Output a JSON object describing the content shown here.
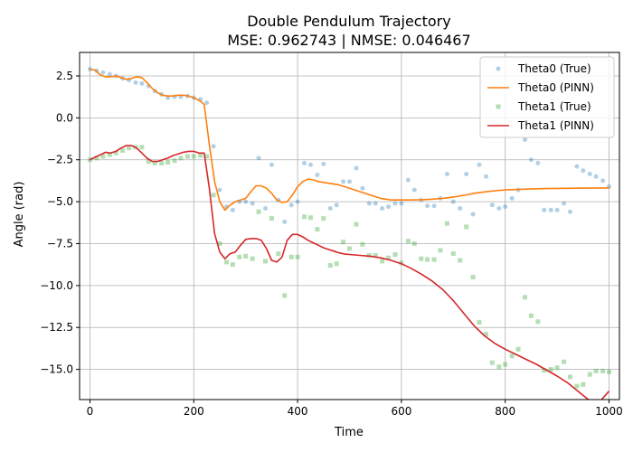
{
  "chart_data": {
    "type": "line",
    "title_line1": "Double Pendulum Trajectory",
    "title_line2": "MSE: 0.962743 | NMSE: 0.046467",
    "xlabel": "Time",
    "ylabel": "Angle (rad)",
    "xlim": [
      -20,
      1020
    ],
    "ylim": [
      -16.8,
      3.9
    ],
    "xticks": [
      0,
      200,
      400,
      600,
      800,
      1000
    ],
    "yticks": [
      2.5,
      0.0,
      -2.5,
      -5.0,
      -7.5,
      -10.0,
      -12.5,
      -15.0
    ],
    "ytick_labels": [
      "2.5",
      "0.0",
      "−2.5",
      "−5.0",
      "−7.5",
      "−10.0",
      "−12.5",
      "−15.0"
    ],
    "grid": true,
    "legend_position": "top-right",
    "series": [
      {
        "name": "Theta0 (True)",
        "kind": "scatter",
        "marker": "circle",
        "color": "#1f77b4",
        "x": [
          0,
          13,
          25,
          38,
          50,
          63,
          75,
          88,
          100,
          113,
          125,
          138,
          150,
          163,
          175,
          188,
          200,
          213,
          225,
          238,
          250,
          263,
          275,
          288,
          300,
          313,
          325,
          338,
          350,
          363,
          375,
          388,
          400,
          413,
          425,
          438,
          450,
          463,
          475,
          488,
          500,
          513,
          525,
          538,
          550,
          563,
          575,
          588,
          600,
          613,
          625,
          638,
          650,
          663,
          675,
          688,
          700,
          713,
          725,
          738,
          750,
          763,
          775,
          788,
          800,
          813,
          825,
          838,
          850,
          863,
          875,
          888,
          900,
          913,
          925,
          938,
          950,
          963,
          975,
          988,
          1000
        ],
        "y": [
          2.9,
          2.8,
          2.7,
          2.6,
          2.5,
          2.35,
          2.25,
          2.1,
          2.05,
          1.9,
          1.6,
          1.4,
          1.2,
          1.25,
          1.25,
          1.3,
          1.2,
          1.1,
          0.9,
          -1.7,
          -4.3,
          -5.3,
          -5.5,
          -5.0,
          -5.0,
          -5.1,
          -2.4,
          -5.4,
          -2.8,
          -4.9,
          -6.2,
          -5.2,
          -5.0,
          -2.7,
          -2.8,
          -3.4,
          -2.75,
          -5.4,
          -5.2,
          -3.8,
          -3.8,
          -3.0,
          -4.2,
          -5.1,
          -5.1,
          -5.4,
          -5.3,
          -5.1,
          -5.1,
          -3.7,
          -4.3,
          -4.9,
          -5.25,
          -5.25,
          -4.8,
          -3.35,
          -5.0,
          -5.4,
          -3.35,
          -5.75,
          -2.8,
          -3.5,
          -5.2,
          -5.4,
          -5.3,
          -4.8,
          -4.3,
          -1.3,
          -2.5,
          -2.7,
          -5.5,
          -5.5,
          -5.5,
          -5.1,
          -5.6,
          -2.9,
          -3.15,
          -3.35,
          -3.5,
          -3.75,
          -4.1
        ]
      },
      {
        "name": "Theta0 (PINN)",
        "kind": "line",
        "color": "#ff7f0e",
        "x": [
          0,
          10,
          20,
          30,
          40,
          50,
          60,
          70,
          80,
          90,
          100,
          110,
          120,
          130,
          140,
          150,
          160,
          170,
          180,
          190,
          200,
          210,
          220,
          230,
          240,
          250,
          260,
          270,
          280,
          290,
          300,
          310,
          320,
          330,
          340,
          350,
          360,
          370,
          380,
          390,
          400,
          410,
          420,
          430,
          440,
          450,
          460,
          470,
          480,
          490,
          500,
          520,
          540,
          560,
          580,
          600,
          620,
          640,
          660,
          680,
          700,
          720,
          740,
          760,
          780,
          800,
          840,
          880,
          920,
          960,
          1000
        ],
        "y": [
          2.9,
          2.85,
          2.55,
          2.45,
          2.45,
          2.5,
          2.4,
          2.3,
          2.35,
          2.45,
          2.4,
          2.1,
          1.75,
          1.5,
          1.35,
          1.3,
          1.3,
          1.35,
          1.35,
          1.3,
          1.2,
          1.05,
          0.8,
          -1.6,
          -3.8,
          -5.0,
          -5.5,
          -5.2,
          -5.0,
          -4.9,
          -4.8,
          -4.4,
          -4.05,
          -4.05,
          -4.2,
          -4.5,
          -4.9,
          -5.05,
          -5.0,
          -4.6,
          -4.1,
          -3.8,
          -3.65,
          -3.7,
          -3.8,
          -3.85,
          -3.9,
          -3.95,
          -4.0,
          -4.1,
          -4.2,
          -4.4,
          -4.6,
          -4.8,
          -4.9,
          -4.9,
          -4.9,
          -4.88,
          -4.85,
          -4.8,
          -4.72,
          -4.62,
          -4.5,
          -4.42,
          -4.35,
          -4.3,
          -4.25,
          -4.22,
          -4.2,
          -4.19,
          -4.18
        ]
      },
      {
        "name": "Theta1 (True)",
        "kind": "scatter",
        "marker": "square",
        "color": "#2ca02c",
        "x": [
          0,
          13,
          25,
          38,
          50,
          63,
          75,
          88,
          100,
          113,
          125,
          138,
          150,
          163,
          175,
          188,
          200,
          213,
          225,
          238,
          250,
          263,
          275,
          288,
          300,
          313,
          325,
          338,
          350,
          363,
          375,
          388,
          400,
          413,
          425,
          438,
          450,
          463,
          475,
          488,
          500,
          513,
          525,
          538,
          550,
          563,
          575,
          588,
          600,
          613,
          625,
          638,
          650,
          663,
          675,
          688,
          700,
          713,
          725,
          738,
          750,
          763,
          775,
          788,
          800,
          813,
          825,
          838,
          850,
          863,
          875,
          888,
          900,
          913,
          925,
          938,
          950,
          963,
          975,
          988,
          1000
        ],
        "y": [
          -2.5,
          -2.4,
          -2.3,
          -2.2,
          -2.1,
          -1.95,
          -1.8,
          -1.75,
          -1.75,
          -2.6,
          -2.7,
          -2.7,
          -2.65,
          -2.55,
          -2.4,
          -2.3,
          -2.3,
          -2.25,
          -2.3,
          -4.6,
          -7.5,
          -8.6,
          -8.75,
          -8.3,
          -8.25,
          -8.4,
          -5.6,
          -8.55,
          -6.0,
          -8.1,
          -10.6,
          -8.3,
          -8.3,
          -5.9,
          -5.95,
          -6.65,
          -6.0,
          -8.8,
          -8.7,
          -7.4,
          -7.8,
          -6.35,
          -7.55,
          -8.2,
          -8.2,
          -8.55,
          -8.35,
          -8.15,
          -8.65,
          -7.35,
          -7.5,
          -8.4,
          -8.45,
          -8.45,
          -7.9,
          -6.3,
          -8.1,
          -8.5,
          -6.5,
          -9.5,
          -12.2,
          -12.9,
          -14.6,
          -14.85,
          -14.7,
          -14.2,
          -13.8,
          -10.7,
          -11.8,
          -12.15,
          -15.05,
          -15.0,
          -14.9,
          -14.55,
          -15.45,
          -16.0,
          -15.9,
          -15.3,
          -15.1,
          -15.1,
          -15.15
        ]
      },
      {
        "name": "Theta1 (PINN)",
        "kind": "line",
        "color": "#d62728",
        "x": [
          0,
          10,
          20,
          30,
          40,
          50,
          60,
          70,
          80,
          90,
          100,
          110,
          120,
          130,
          140,
          150,
          160,
          170,
          180,
          190,
          200,
          210,
          220,
          230,
          240,
          250,
          260,
          270,
          280,
          290,
          300,
          310,
          320,
          330,
          340,
          350,
          360,
          370,
          380,
          390,
          400,
          410,
          420,
          430,
          440,
          450,
          460,
          470,
          480,
          490,
          500,
          520,
          540,
          560,
          580,
          600,
          620,
          640,
          660,
          680,
          700,
          720,
          740,
          760,
          780,
          800,
          820,
          840,
          860,
          880,
          900,
          920,
          940,
          960,
          980,
          1000
        ],
        "y": [
          -2.5,
          -2.35,
          -2.2,
          -2.05,
          -2.1,
          -2.0,
          -1.8,
          -1.65,
          -1.65,
          -1.8,
          -2.1,
          -2.4,
          -2.6,
          -2.6,
          -2.5,
          -2.4,
          -2.25,
          -2.15,
          -2.05,
          -2.0,
          -2.0,
          -2.1,
          -2.1,
          -4.2,
          -6.9,
          -8.0,
          -8.4,
          -8.1,
          -8.0,
          -7.6,
          -7.25,
          -7.2,
          -7.2,
          -7.3,
          -7.8,
          -8.5,
          -8.6,
          -8.3,
          -7.3,
          -6.95,
          -6.95,
          -7.1,
          -7.3,
          -7.45,
          -7.6,
          -7.75,
          -7.85,
          -7.95,
          -8.05,
          -8.12,
          -8.15,
          -8.2,
          -8.25,
          -8.35,
          -8.5,
          -8.7,
          -9.0,
          -9.35,
          -9.75,
          -10.25,
          -10.9,
          -11.65,
          -12.4,
          -13.0,
          -13.45,
          -13.8,
          -14.1,
          -14.4,
          -14.7,
          -15.05,
          -15.4,
          -15.8,
          -16.3,
          -16.8,
          -17.0,
          -16.3
        ]
      }
    ]
  }
}
